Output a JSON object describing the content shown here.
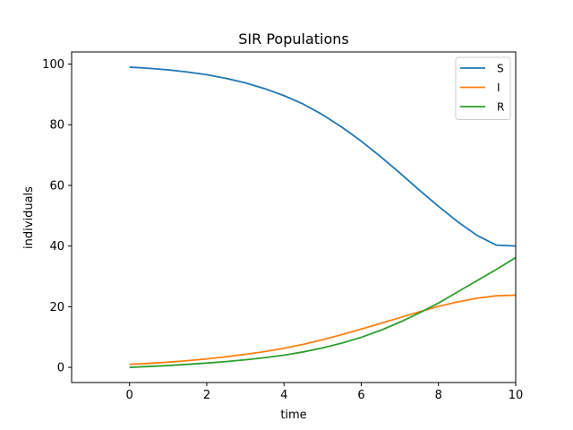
{
  "chart_data": {
    "type": "line",
    "title": "SIR Populations",
    "xlabel": "time",
    "ylabel": "individuals",
    "xlim": [
      -1.5,
      10
    ],
    "ylim": [
      -5,
      104
    ],
    "xticks": [
      0,
      2,
      4,
      6,
      8,
      10
    ],
    "yticks": [
      0,
      20,
      40,
      60,
      80,
      100
    ],
    "grid": false,
    "legend_position": "top-right",
    "x": [
      0,
      0.5,
      1,
      1.5,
      2,
      2.5,
      3,
      3.5,
      4,
      4.5,
      5,
      5.5,
      6,
      6.5,
      7,
      7.5,
      8,
      8.5,
      9,
      9.5,
      10
    ],
    "series": [
      {
        "name": "S",
        "color": "#1f77b4",
        "values": [
          99.0,
          98.6,
          98.1,
          97.4,
          96.5,
          95.3,
          93.8,
          91.9,
          89.6,
          86.8,
          83.3,
          79.2,
          74.6,
          69.5,
          64.1,
          58.5,
          53.1,
          48.0,
          43.5,
          40.3,
          40.0
        ]
      },
      {
        "name": "I",
        "color": "#ff7f0e",
        "values": [
          1.0,
          1.3,
          1.7,
          2.2,
          2.8,
          3.5,
          4.3,
          5.2,
          6.3,
          7.6,
          9.1,
          10.8,
          12.6,
          14.5,
          16.4,
          18.3,
          20.1,
          21.6,
          22.8,
          23.6,
          23.8
        ]
      },
      {
        "name": "R",
        "color": "#2ca02c",
        "values": [
          0.0,
          0.3,
          0.6,
          1.0,
          1.4,
          1.9,
          2.5,
          3.2,
          4.0,
          5.1,
          6.4,
          8.0,
          9.9,
          12.2,
          14.9,
          17.9,
          21.2,
          24.9,
          28.6,
          32.3,
          36.2
        ]
      }
    ]
  }
}
